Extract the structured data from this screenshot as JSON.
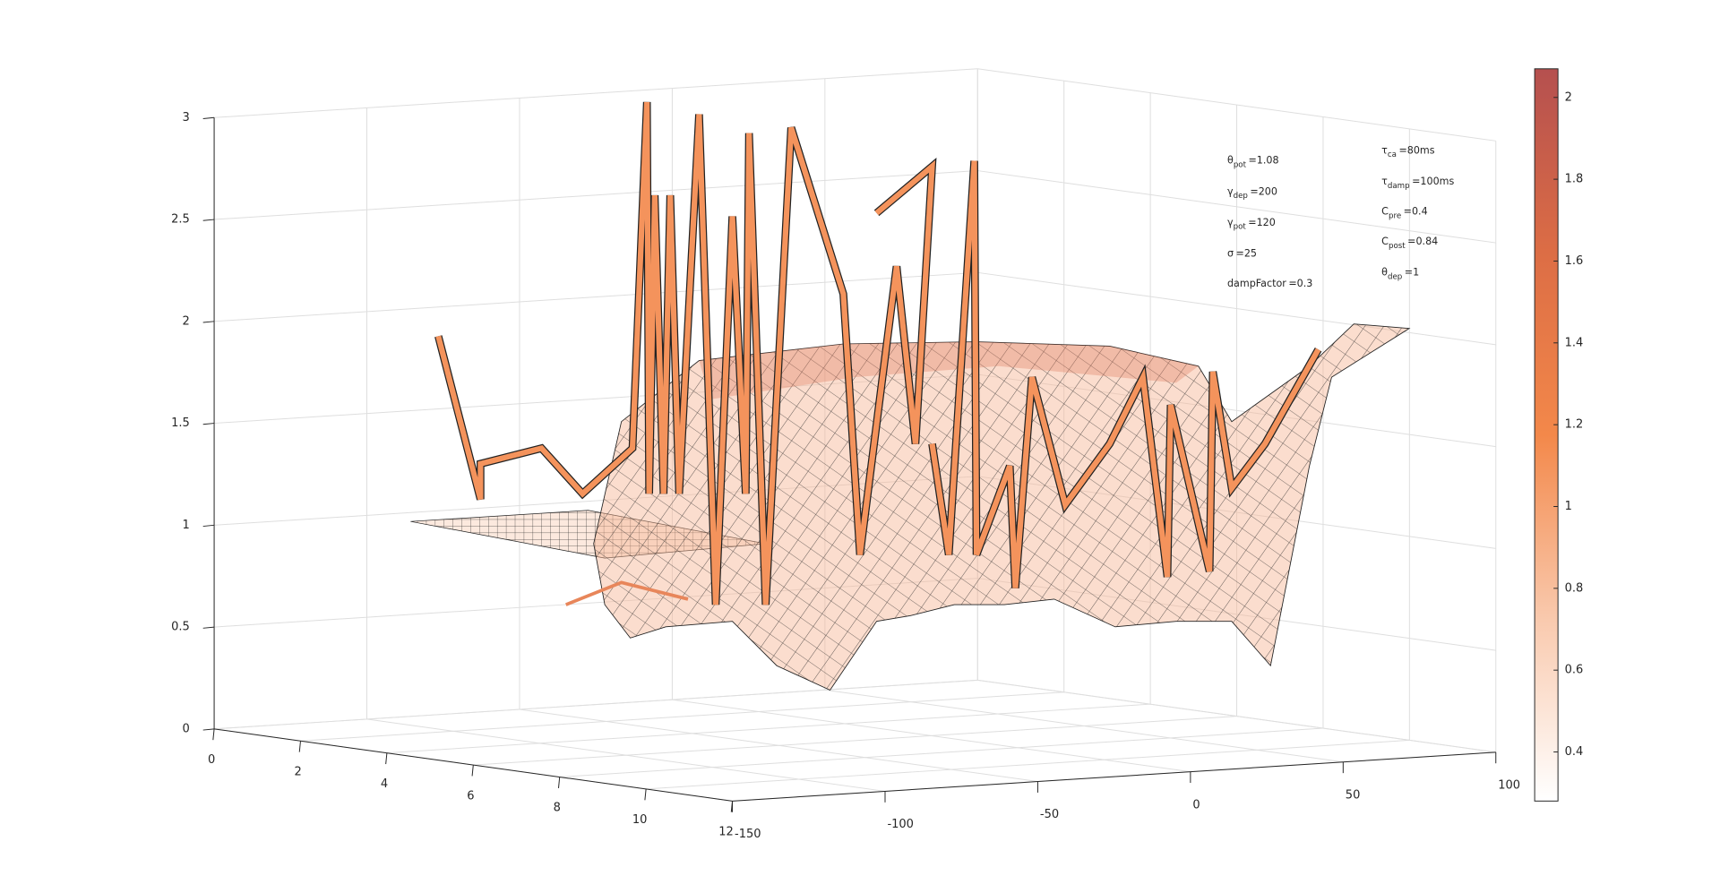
{
  "chart_data": {
    "type": "surface3d",
    "xlim": [
      0,
      12
    ],
    "xticks": [
      0,
      2,
      4,
      6,
      8,
      10,
      12
    ],
    "ylim": [
      -150,
      100
    ],
    "yticks": [
      -150,
      -100,
      -50,
      0,
      50,
      100
    ],
    "zlim": [
      0,
      3
    ],
    "zticks": [
      0,
      0.5,
      1,
      1.5,
      2,
      2.5,
      3
    ],
    "grid": true,
    "colorbar": {
      "clim": [
        0.28,
        2.07
      ],
      "ticks": [
        0.4,
        0.6,
        0.8,
        1,
        1.2,
        1.4,
        1.6,
        1.8,
        2
      ],
      "colors": [
        "#ffffff",
        "#f9c9ad",
        "#f3884a",
        "#dc6d45",
        "#b5504f"
      ]
    },
    "annotations": [
      {
        "base": "θ",
        "sub": "pot",
        "text": "=1.08"
      },
      {
        "base": "γ",
        "sub": "dep",
        "text": "=200"
      },
      {
        "base": "γ",
        "sub": "pot",
        "text": "=120"
      },
      {
        "base": "σ",
        "text": "=25"
      },
      {
        "base": "dampFactor",
        "text": "=0.3"
      },
      {
        "base": "τ",
        "sub": "ca",
        "text": "=80ms"
      },
      {
        "base": "τ",
        "sub": "damp",
        "text": "=100ms"
      },
      {
        "base": "C",
        "sub": "pre",
        "text": "=0.4"
      },
      {
        "base": "C",
        "sub": "post",
        "text": "=0.84"
      },
      {
        "base": "θ",
        "sub": "dep",
        "text": "=1"
      }
    ]
  }
}
